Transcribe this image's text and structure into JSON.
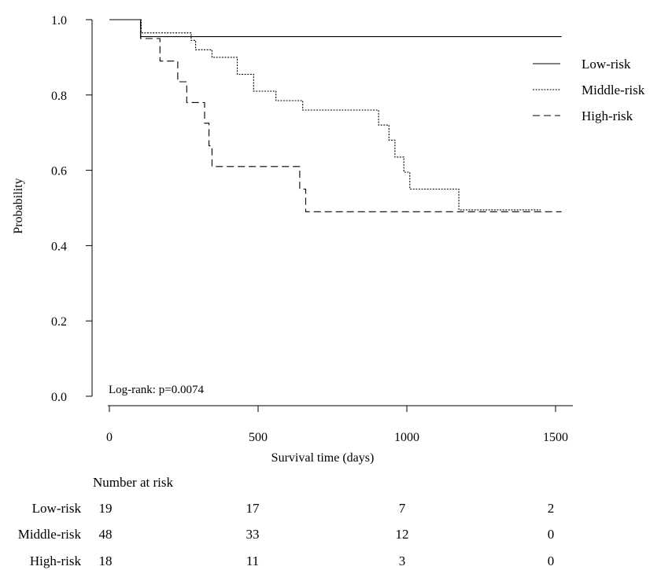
{
  "chart_data": {
    "type": "line",
    "subtype": "kaplan-meier step",
    "xlabel": "Survival time (days)",
    "ylabel": "Probability",
    "xlim": [
      0,
      1500
    ],
    "ylim": [
      0,
      1
    ],
    "xticks": [
      "0",
      "500",
      "1000",
      "1500"
    ],
    "xtick_values": [
      0,
      500,
      1000,
      1500
    ],
    "yticks": [
      "0.0",
      "0.2",
      "0.4",
      "0.6",
      "0.8",
      "1.0"
    ],
    "ytick_values": [
      0,
      0.2,
      0.4,
      0.6,
      0.8,
      1.0
    ],
    "grid": false,
    "legend_position": "right",
    "annotation": "Log-rank: p=0.0074",
    "series": [
      {
        "name": "Low-risk",
        "line_style": "solid",
        "steps": [
          [
            0,
            1.0
          ],
          [
            105,
            0.955
          ],
          [
            1520,
            0.955
          ]
        ]
      },
      {
        "name": "Middle-risk",
        "line_style": "dotted",
        "steps": [
          [
            0,
            1.0
          ],
          [
            107,
            0.965
          ],
          [
            275,
            0.945
          ],
          [
            290,
            0.92
          ],
          [
            345,
            0.9
          ],
          [
            430,
            0.855
          ],
          [
            485,
            0.81
          ],
          [
            560,
            0.785
          ],
          [
            650,
            0.76
          ],
          [
            905,
            0.72
          ],
          [
            940,
            0.68
          ],
          [
            960,
            0.635
          ],
          [
            990,
            0.595
          ],
          [
            1010,
            0.55
          ],
          [
            1175,
            0.495
          ],
          [
            1450,
            0.495
          ]
        ]
      },
      {
        "name": "High-risk",
        "line_style": "dashed",
        "steps": [
          [
            0,
            1.0
          ],
          [
            105,
            0.95
          ],
          [
            170,
            0.89
          ],
          [
            230,
            0.835
          ],
          [
            260,
            0.78
          ],
          [
            320,
            0.725
          ],
          [
            335,
            0.665
          ],
          [
            345,
            0.61
          ],
          [
            640,
            0.55
          ],
          [
            660,
            0.49
          ],
          [
            1520,
            0.49
          ]
        ]
      }
    ]
  },
  "risk_table": {
    "title": "Number at risk",
    "rows": [
      {
        "label": "Low-risk",
        "counts": [
          "19",
          "17",
          "7",
          "2"
        ]
      },
      {
        "label": "Middle-risk",
        "counts": [
          "48",
          "33",
          "12",
          "0"
        ]
      },
      {
        "label": "High-risk",
        "counts": [
          "18",
          "11",
          "3",
          "0"
        ]
      }
    ]
  }
}
